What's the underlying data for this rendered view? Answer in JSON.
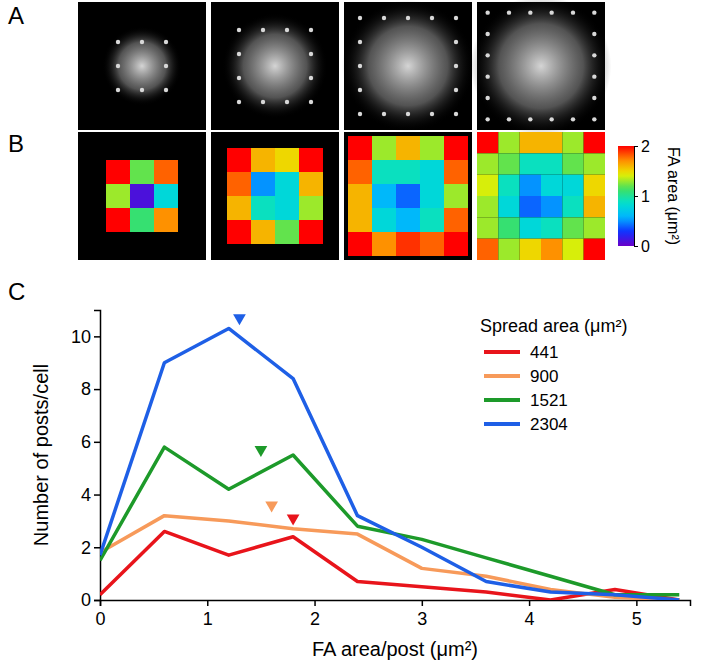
{
  "panel_labels": [
    "A",
    "B",
    "C"
  ],
  "chart_data": [
    {
      "type": "heatmap",
      "grids": [
        [
          [
            2.0,
            1.2,
            1.8
          ],
          [
            1.3,
            0.1,
            0.8
          ],
          [
            2.0,
            1.1,
            1.7
          ]
        ],
        [
          [
            2.0,
            1.6,
            1.5,
            2.0
          ],
          [
            1.8,
            0.5,
            0.8,
            1.6
          ],
          [
            1.6,
            0.9,
            0.8,
            1.3
          ],
          [
            2.0,
            1.6,
            1.2,
            2.0
          ]
        ],
        [
          [
            2.0,
            1.3,
            1.6,
            1.3,
            2.0
          ],
          [
            1.8,
            0.9,
            0.9,
            0.8,
            1.8
          ],
          [
            1.6,
            0.6,
            0.4,
            0.8,
            1.3
          ],
          [
            1.6,
            0.8,
            0.6,
            0.9,
            1.8
          ],
          [
            2.0,
            1.7,
            1.9,
            1.8,
            2.0
          ]
        ],
        [
          [
            2.0,
            1.3,
            1.6,
            1.6,
            1.3,
            2.0
          ],
          [
            1.3,
            1.2,
            0.9,
            0.9,
            1.2,
            1.3
          ],
          [
            1.4,
            0.9,
            0.5,
            0.8,
            0.8,
            1.5
          ],
          [
            1.3,
            0.8,
            0.4,
            0.5,
            0.9,
            1.6
          ],
          [
            1.3,
            1.1,
            0.8,
            0.9,
            1.2,
            1.3
          ],
          [
            1.8,
            1.3,
            1.5,
            1.7,
            1.4,
            2.0
          ]
        ]
      ],
      "color_range": [
        0,
        2
      ],
      "color_ticks": [
        0,
        1,
        2
      ],
      "colorbar_label": "FA area (μm²)"
    },
    {
      "type": "line",
      "x_label": "FA area/post (μm²)",
      "y_label": "Number of posts/cell",
      "x": [
        0,
        0.6,
        1.2,
        1.8,
        2.4,
        3.0,
        3.6,
        4.2,
        4.8,
        5.4
      ],
      "xlim": [
        0,
        5.5
      ],
      "xticks": [
        0,
        1,
        2,
        3,
        4,
        5
      ],
      "ylim": [
        0,
        11
      ],
      "yticks": [
        0,
        2,
        4,
        6,
        8,
        10
      ],
      "legend": "upper right",
      "legend_title": "Spread area (μm²)",
      "series": [
        {
          "name": "441",
          "color": "#e8141b",
          "values": [
            0.2,
            2.6,
            1.7,
            2.4,
            0.7,
            0.5,
            0.3,
            0.0,
            0.4,
            0.0
          ],
          "mean_x": 1.8,
          "mean_y": 3.1
        },
        {
          "name": "900",
          "color": "#f79a5a",
          "values": [
            1.8,
            3.2,
            3.0,
            2.7,
            2.5,
            1.2,
            0.9,
            0.4,
            0.1,
            0.0
          ],
          "mean_x": 1.6,
          "mean_y": 3.6
        },
        {
          "name": "1521",
          "color": "#1d9a2a",
          "values": [
            1.5,
            5.8,
            4.2,
            5.5,
            2.8,
            2.3,
            1.6,
            0.9,
            0.2,
            0.2
          ],
          "mean_x": 1.5,
          "mean_y": 5.7
        },
        {
          "name": "2304",
          "color": "#1e5fe6",
          "values": [
            1.7,
            9.0,
            10.3,
            8.4,
            3.2,
            2.0,
            0.7,
            0.3,
            0.2,
            0.0
          ],
          "mean_x": 1.3,
          "mean_y": 10.7
        }
      ]
    }
  ]
}
